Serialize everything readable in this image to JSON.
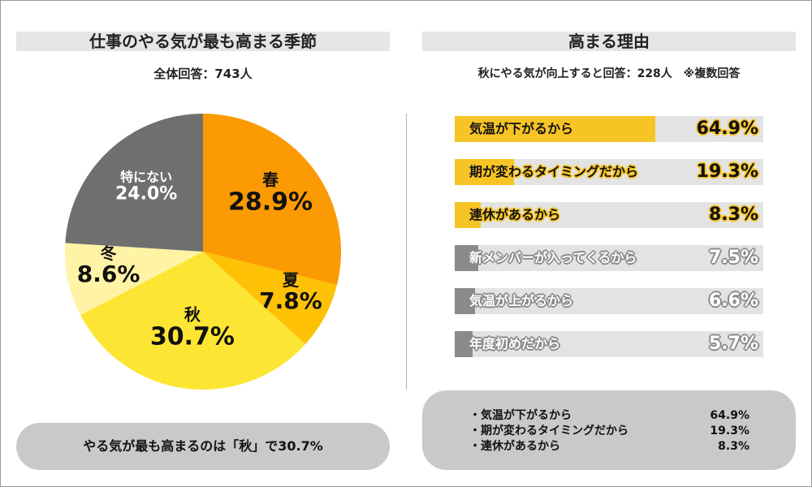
{
  "left": {
    "title": "仕事のやる気が最も高まる季節",
    "subtitle": "全体回答：743人",
    "summary": "やる気が最も高まるのは「秋」で30.7%"
  },
  "right": {
    "title": "高まる理由",
    "subtitle": "秋にやる気が向上すると回答：228人　※複数回答",
    "summary_items": [
      {
        "label": "・気温が下がるから",
        "value": "64.9%"
      },
      {
        "label": "・期が変わるタイミングだから",
        "value": "19.3%"
      },
      {
        "label": "・連休があるから",
        "value": "8.3%"
      }
    ]
  },
  "colors": {
    "spring": "#fb9a02",
    "summer": "#fec106",
    "autumn": "#fde533",
    "winter": "#fff3a6",
    "none": "#6f6f6f",
    "bar_highlight": "#f7c426",
    "bar_gray": "#8a8a8a",
    "bar_bg": "#e3e3e3"
  },
  "chart_data": [
    {
      "type": "pie",
      "title": "仕事のやる気が最も高まる季節",
      "categories": [
        "春",
        "夏",
        "秋",
        "冬",
        "特にない"
      ],
      "values": [
        28.9,
        7.8,
        30.7,
        8.6,
        24.0
      ],
      "labels": [
        "28.9%",
        "7.8%",
        "30.7%",
        "8.6%",
        "24.0%"
      ],
      "start": "12 o'clock, clockwise"
    },
    {
      "type": "bar",
      "orientation": "horizontal",
      "title": "高まる理由",
      "categories": [
        "気温が下がるから",
        "期が変わるタイミングだから",
        "連休があるから",
        "新メンバーが入ってくるから",
        "気温が上がるから",
        "年度初めだから"
      ],
      "values": [
        64.9,
        19.3,
        8.3,
        7.5,
        6.6,
        5.7
      ],
      "labels": [
        "64.9%",
        "19.3%",
        "8.3%",
        "7.5%",
        "6.6%",
        "5.7%"
      ],
      "highlighted": [
        true,
        true,
        true,
        false,
        false,
        false
      ],
      "xlim": [
        0,
        100
      ]
    }
  ]
}
